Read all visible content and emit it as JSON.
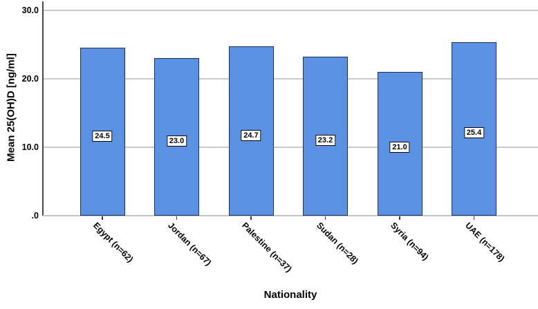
{
  "chart_data": {
    "type": "bar",
    "title": "",
    "categories": [
      "Egypt (n=62)",
      "Jordan (n=67)",
      "Palestine (n=37)",
      "Sudan (n=28)",
      "Syria (n=94)",
      "UAE (n=178)"
    ],
    "values": [
      24.5,
      23.0,
      24.7,
      23.2,
      21.0,
      25.4
    ],
    "value_labels": [
      "24.5",
      "23.0",
      "24.7",
      "23.2",
      "21.0",
      "25.4"
    ],
    "xlabel": "Nationality",
    "ylabel": "Mean 25(OH)D [ng/ml]",
    "y_ticks": [
      {
        "value": 30,
        "label": "30.0"
      },
      {
        "value": 20,
        "label": "20.0"
      },
      {
        "value": 10,
        "label": "10.0"
      },
      {
        "value": 0,
        "label": ".0"
      }
    ],
    "ylim": [
      0,
      30
    ],
    "grid": "horizontal major gridlines at 10.0, 20.0, 30.0",
    "legend": "none",
    "colors": {
      "bar_fill": "#5b91e2",
      "bar_border": "#1f3050",
      "gridline": "#c9c9c9",
      "axis_line": "#4a4a4a",
      "value_label_bg": "#ffffff",
      "value_label_border": "#000000",
      "text": "#000000",
      "background": "#ffffff"
    }
  }
}
